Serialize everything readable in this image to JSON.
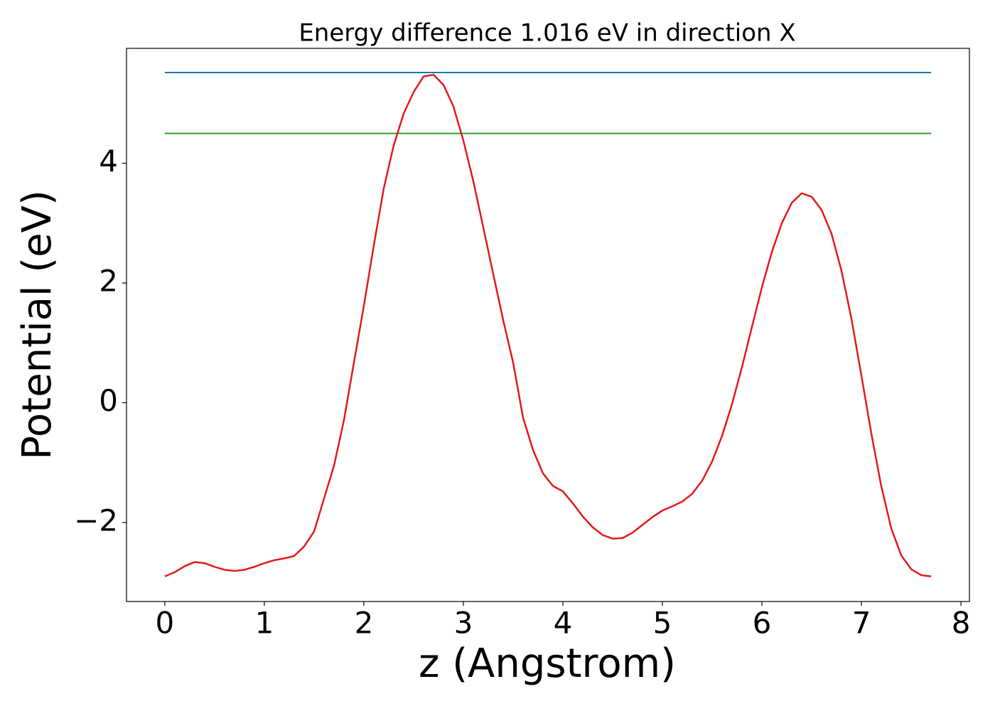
{
  "chart_data": {
    "type": "line",
    "title": "Energy difference 1.016 eV in direction X",
    "xlabel": "z (Angstrom)",
    "ylabel": "Potential (eV)",
    "x": [
      0,
      0.1,
      0.2,
      0.3,
      0.4,
      0.5,
      0.6,
      0.7,
      0.8,
      0.9,
      1.0,
      1.1,
      1.2,
      1.3,
      1.4,
      1.5,
      1.6,
      1.7,
      1.8,
      1.9,
      2.0,
      2.1,
      2.2,
      2.3,
      2.4,
      2.5,
      2.6,
      2.7,
      2.8,
      2.9,
      3.0,
      3.1,
      3.2,
      3.3,
      3.4,
      3.5,
      3.6,
      3.7,
      3.8,
      3.9,
      4.0,
      4.1,
      4.2,
      4.3,
      4.4,
      4.5,
      4.6,
      4.7,
      4.8,
      4.9,
      5.0,
      5.1,
      5.2,
      5.3,
      5.4,
      5.5,
      5.6,
      5.7,
      5.8,
      5.9,
      6.0,
      6.1,
      6.2,
      6.3,
      6.4,
      6.5,
      6.6,
      6.7,
      6.8,
      6.9,
      7.0,
      7.1,
      7.2,
      7.3,
      7.4,
      7.5,
      7.6,
      7.7
    ],
    "series": [
      {
        "color": "#e31a1c",
        "values": [
          -2.9,
          -2.83,
          -2.73,
          -2.66,
          -2.68,
          -2.74,
          -2.79,
          -2.81,
          -2.79,
          -2.74,
          -2.68,
          -2.63,
          -2.6,
          -2.56,
          -2.4,
          -2.15,
          -1.6,
          -1.05,
          -0.29,
          0.67,
          1.62,
          2.63,
          3.58,
          4.3,
          4.83,
          5.19,
          5.45,
          5.48,
          5.31,
          4.95,
          4.38,
          3.7,
          2.93,
          2.15,
          1.38,
          0.67,
          -0.25,
          -0.79,
          -1.18,
          -1.39,
          -1.48,
          -1.68,
          -1.9,
          -2.08,
          -2.21,
          -2.27,
          -2.26,
          -2.17,
          -2.04,
          -1.91,
          -1.8,
          -1.73,
          -1.65,
          -1.52,
          -1.3,
          -0.98,
          -0.55,
          -0.02,
          0.6,
          1.27,
          1.93,
          2.52,
          3.0,
          3.34,
          3.5,
          3.44,
          3.22,
          2.82,
          2.2,
          1.4,
          0.45,
          -0.52,
          -1.4,
          -2.1,
          -2.55,
          -2.78,
          -2.88,
          -2.9
        ]
      }
    ],
    "hlines": [
      {
        "color": "#1f77b4",
        "value": 5.516,
        "xmin": 0,
        "xmax": 7.7
      },
      {
        "color": "#2ca02c",
        "value": 4.5,
        "xmin": 0,
        "xmax": 7.7
      }
    ],
    "xlim": [
      -0.385,
      8.085
    ],
    "ylim": [
      -3.32,
      5.92
    ],
    "xticks": [
      0,
      1,
      2,
      3,
      4,
      5,
      6,
      7,
      8
    ],
    "yticks": [
      {
        "value": -2,
        "label": "−2"
      },
      0,
      2,
      4
    ],
    "grid": false
  }
}
